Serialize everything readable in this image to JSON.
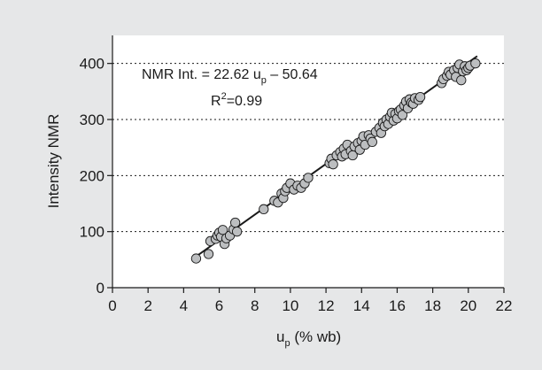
{
  "chart_data": {
    "type": "scatter",
    "title": "",
    "xlabel": "u",
    "xlabel_sub": "p",
    "xlabel_rest": " (% wb)",
    "ylabel": "Intensity NMR",
    "xlim": [
      0,
      22
    ],
    "ylim": [
      0,
      450
    ],
    "xticks": [
      0,
      2,
      4,
      6,
      8,
      10,
      12,
      14,
      16,
      18,
      20,
      22
    ],
    "yticks": [
      0,
      100,
      200,
      300,
      400
    ],
    "xtick_labels": [
      "0",
      "2",
      "4",
      "6",
      "8",
      "10",
      "12",
      "14",
      "16",
      "18",
      "20",
      "22"
    ],
    "ytick_labels": [
      "0",
      "100",
      "200",
      "300",
      "400"
    ],
    "grid": "horizontal dotted at 100, 200, 300, 400",
    "marker_color": "#bcbec0",
    "marker_edge": "#1a1a1a",
    "line_color": "#1a1a1a",
    "background": "#e6e7e8",
    "plot_background": "#ffffff",
    "annotation": {
      "eq_prefix": "NMR Int. = 22.62 u",
      "eq_sub": "p",
      "eq_suffix": " – 50.64",
      "r2_main": "R",
      "r2_sup": "2",
      "r2_value": "=0.99"
    },
    "fit": {
      "slope": 22.62,
      "intercept": -50.64,
      "x_range": [
        4.6,
        20.5
      ]
    },
    "series": [
      {
        "points": [
          [
            4.7,
            52
          ],
          [
            5.4,
            60
          ],
          [
            5.5,
            83
          ],
          [
            5.8,
            87
          ],
          [
            5.9,
            93
          ],
          [
            6.0,
            98
          ],
          [
            6.1,
            91
          ],
          [
            6.2,
            103
          ],
          [
            6.3,
            78
          ],
          [
            6.4,
            88
          ],
          [
            6.6,
            93
          ],
          [
            6.8,
            104
          ],
          [
            6.9,
            116
          ],
          [
            7.0,
            100
          ],
          [
            8.5,
            140
          ],
          [
            9.1,
            155
          ],
          [
            9.3,
            152
          ],
          [
            9.5,
            168
          ],
          [
            9.6,
            160
          ],
          [
            9.7,
            172
          ],
          [
            9.8,
            178
          ],
          [
            10.0,
            186
          ],
          [
            10.2,
            175
          ],
          [
            10.4,
            182
          ],
          [
            10.6,
            178
          ],
          [
            10.8,
            186
          ],
          [
            11.0,
            196
          ],
          [
            12.2,
            222
          ],
          [
            12.3,
            230
          ],
          [
            12.4,
            220
          ],
          [
            12.6,
            236
          ],
          [
            12.8,
            242
          ],
          [
            12.9,
            234
          ],
          [
            13.0,
            248
          ],
          [
            13.1,
            238
          ],
          [
            13.2,
            255
          ],
          [
            13.4,
            244
          ],
          [
            13.5,
            236
          ],
          [
            13.6,
            252
          ],
          [
            13.8,
            258
          ],
          [
            13.9,
            246
          ],
          [
            14.0,
            262
          ],
          [
            14.1,
            270
          ],
          [
            14.2,
            255
          ],
          [
            14.4,
            272
          ],
          [
            14.5,
            266
          ],
          [
            14.6,
            260
          ],
          [
            14.8,
            278
          ],
          [
            15.0,
            285
          ],
          [
            15.1,
            276
          ],
          [
            15.2,
            294
          ],
          [
            15.3,
            288
          ],
          [
            15.4,
            300
          ],
          [
            15.5,
            292
          ],
          [
            15.6,
            305
          ],
          [
            15.7,
            312
          ],
          [
            15.8,
            298
          ],
          [
            15.9,
            310
          ],
          [
            16.0,
            302
          ],
          [
            16.1,
            315
          ],
          [
            16.2,
            318
          ],
          [
            16.3,
            308
          ],
          [
            16.4,
            325
          ],
          [
            16.5,
            332
          ],
          [
            16.6,
            320
          ],
          [
            16.7,
            336
          ],
          [
            16.8,
            330
          ],
          [
            16.9,
            328
          ],
          [
            17.0,
            338
          ],
          [
            17.2,
            335
          ],
          [
            17.3,
            340
          ],
          [
            18.5,
            365
          ],
          [
            18.6,
            372
          ],
          [
            18.8,
            378
          ],
          [
            18.9,
            385
          ],
          [
            19.0,
            380
          ],
          [
            19.2,
            388
          ],
          [
            19.3,
            376
          ],
          [
            19.4,
            392
          ],
          [
            19.5,
            398
          ],
          [
            19.6,
            370
          ],
          [
            19.7,
            386
          ],
          [
            19.8,
            395
          ],
          [
            19.9,
            388
          ],
          [
            20.0,
            392
          ],
          [
            20.1,
            396
          ],
          [
            20.4,
            400
          ]
        ]
      }
    ]
  }
}
